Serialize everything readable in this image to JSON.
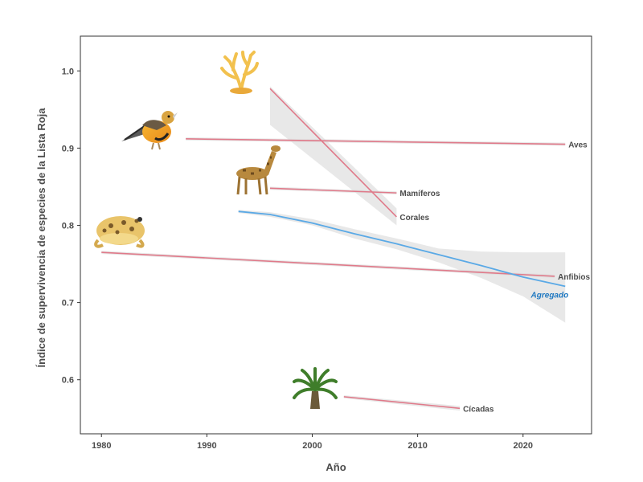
{
  "chart_data": {
    "type": "line",
    "xlabel": "Año",
    "ylabel": "Índice de supervivencia de especies de la Lista Roja",
    "xlim": [
      1978,
      2026.5
    ],
    "ylim": [
      0.53,
      1.045
    ],
    "x_ticks": [
      1980,
      1990,
      2000,
      2010,
      2020
    ],
    "y_ticks": [
      0.6,
      0.7,
      0.8,
      0.9,
      1.0
    ],
    "grid": false,
    "legend": "none",
    "colors": {
      "series": "#e07a8a",
      "aggregate": "#5aa9e6",
      "band": "#d9d9d9",
      "aggregate_label": "#1f78c1"
    },
    "series": [
      {
        "name": "Aves",
        "x": [
          1988,
          2024
        ],
        "y": [
          0.912,
          0.905
        ],
        "ci_upper": [
          0.914,
          0.907
        ],
        "ci_lower": [
          0.91,
          0.903
        ],
        "icon": "bird-icon"
      },
      {
        "name": "Mamíferos",
        "x": [
          1996,
          2008
        ],
        "y": [
          0.848,
          0.842
        ],
        "ci_upper": [
          0.85,
          0.844
        ],
        "ci_lower": [
          0.846,
          0.84
        ],
        "icon": "giraffe-icon"
      },
      {
        "name": "Corales",
        "x": [
          1996,
          2008
        ],
        "y": [
          0.977,
          0.811
        ],
        "ci_upper": [
          0.98,
          0.822
        ],
        "ci_lower": [
          0.93,
          0.8
        ],
        "icon": "coral-icon"
      },
      {
        "name": "Anfibios",
        "x": [
          1980,
          2023
        ],
        "y": [
          0.765,
          0.734
        ],
        "ci_upper": [
          0.767,
          0.736
        ],
        "ci_lower": [
          0.763,
          0.732
        ],
        "icon": "frog-icon"
      },
      {
        "name": "Cícadas",
        "x": [
          2003,
          2014
        ],
        "y": [
          0.578,
          0.563
        ],
        "ci_upper": [
          0.58,
          0.566
        ],
        "ci_lower": [
          0.576,
          0.56
        ],
        "icon": "cycad-icon"
      }
    ],
    "aggregate": {
      "name": "Agregado",
      "x": [
        1993,
        1996,
        2000,
        2004,
        2008,
        2012,
        2016,
        2020,
        2024
      ],
      "y": [
        0.818,
        0.814,
        0.803,
        0.789,
        0.776,
        0.762,
        0.748,
        0.733,
        0.721
      ],
      "ci_upper": [
        0.82,
        0.817,
        0.808,
        0.795,
        0.783,
        0.77,
        0.766,
        0.765,
        0.765
      ],
      "ci_lower": [
        0.816,
        0.811,
        0.8,
        0.783,
        0.769,
        0.752,
        0.732,
        0.708,
        0.674
      ]
    }
  }
}
